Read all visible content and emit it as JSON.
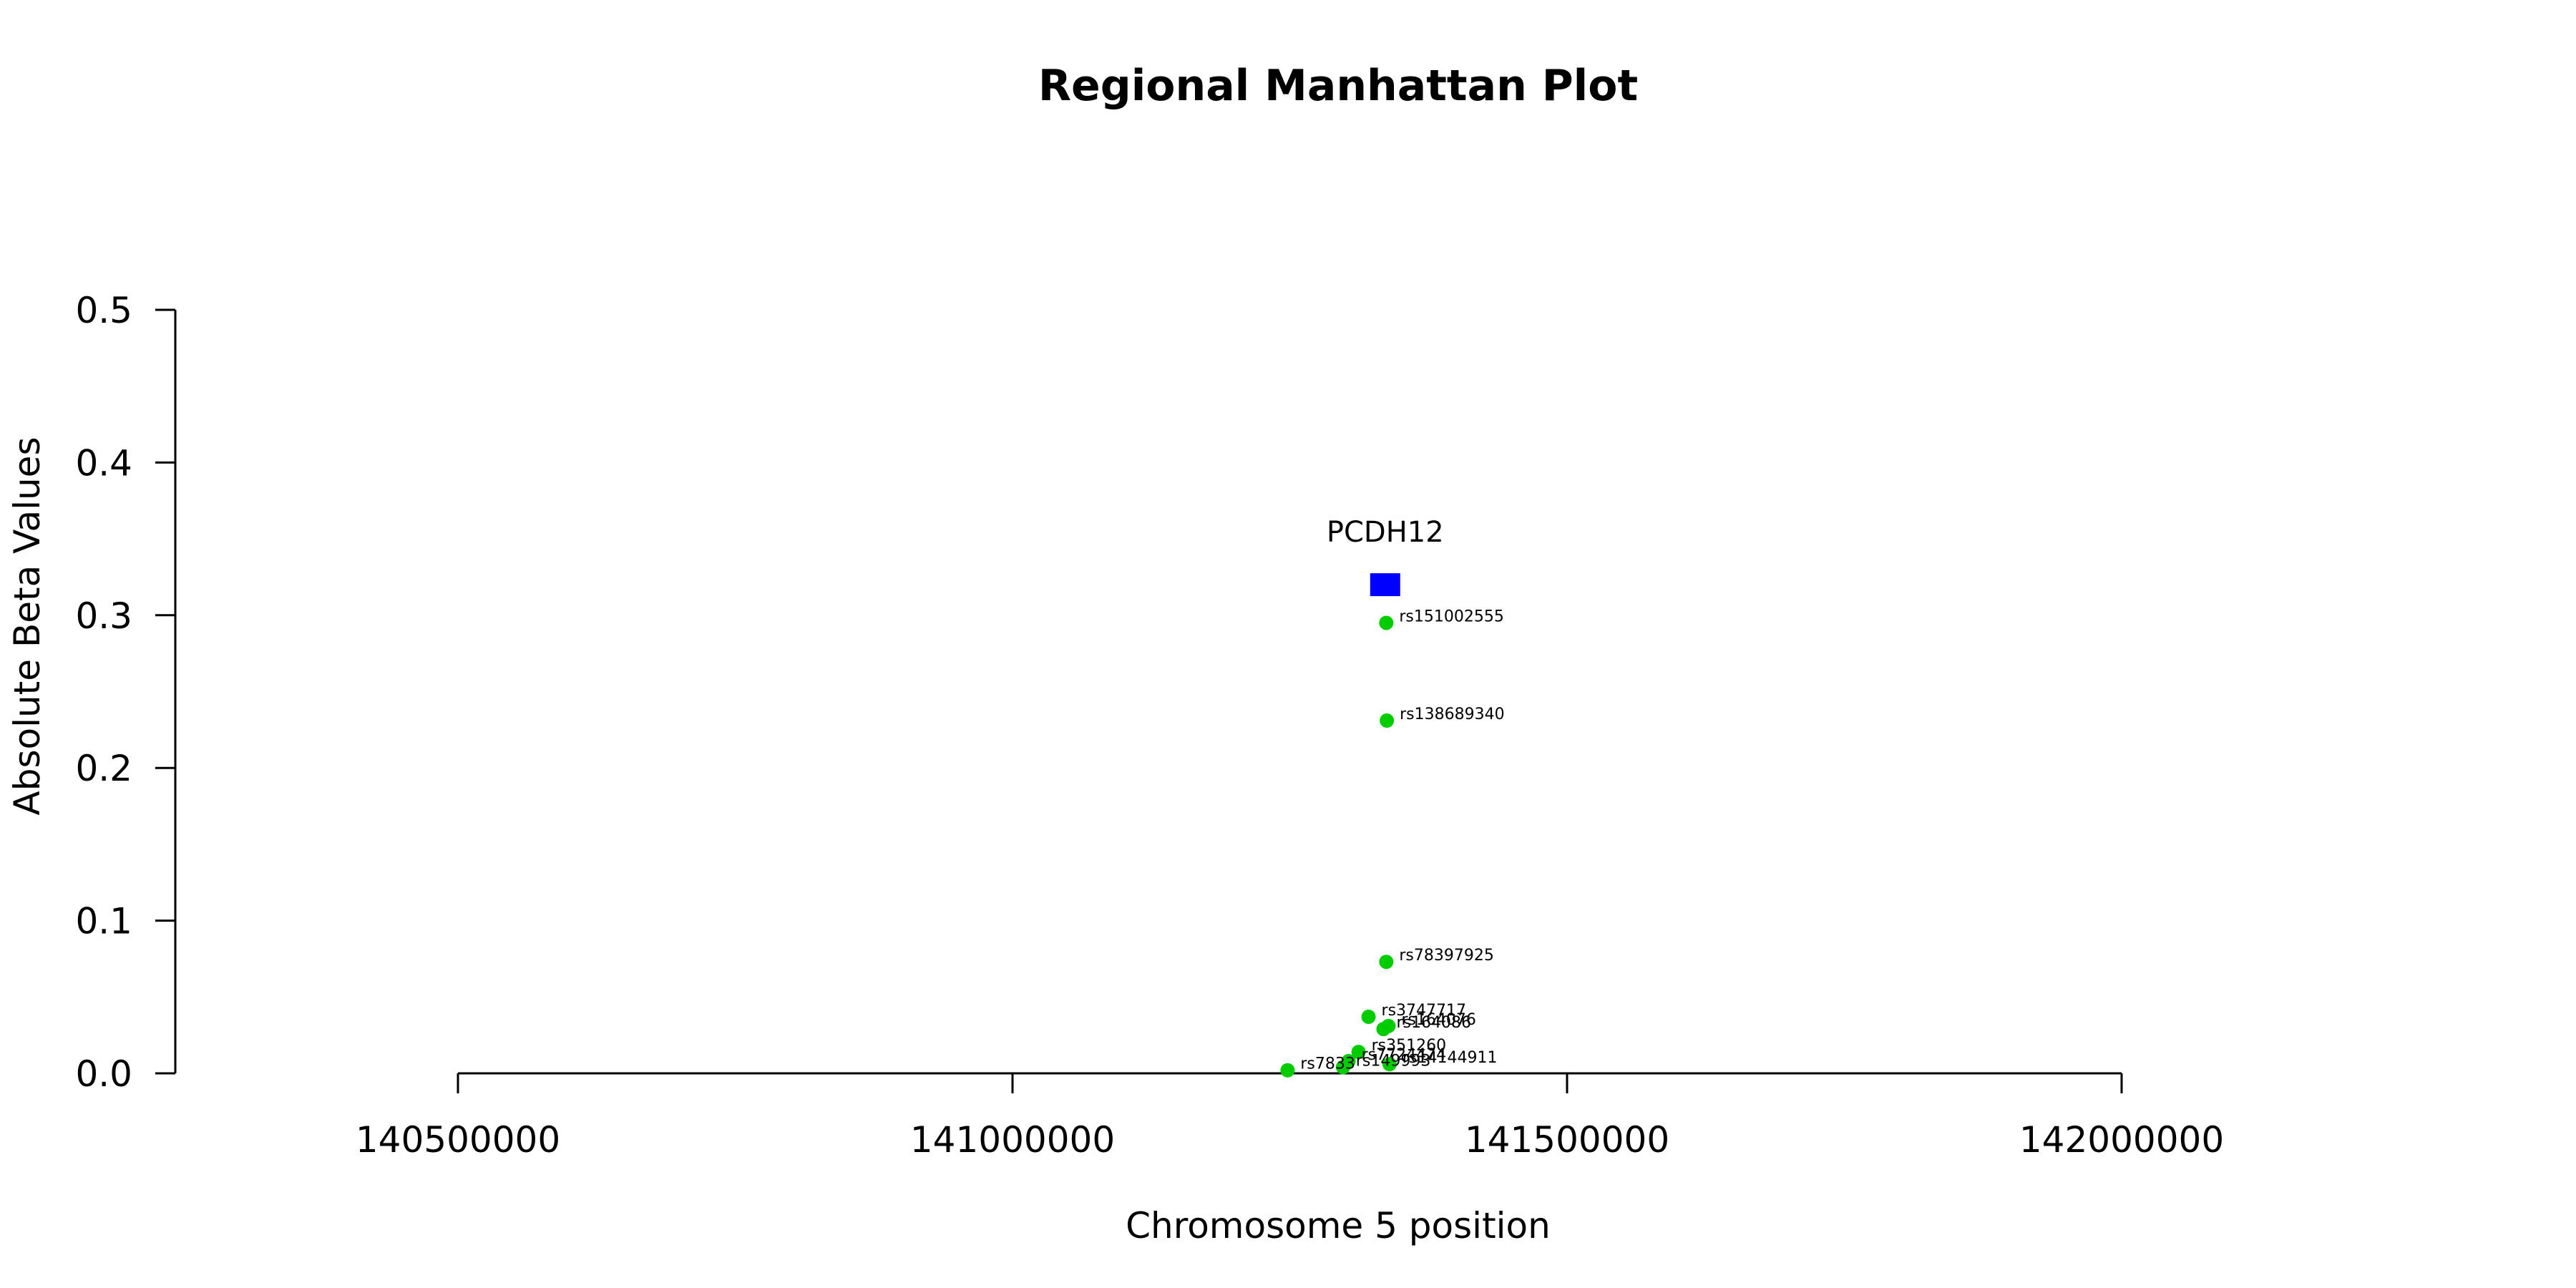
{
  "chart_data": {
    "type": "scatter",
    "title": "Regional Manhattan Plot",
    "xlabel": "Chromosome 5 position",
    "ylabel": "Absolute Beta Values",
    "xlim": [
      140500000,
      142000000
    ],
    "ylim": [
      0,
      0.5
    ],
    "x_ticks": [
      140500000,
      141000000,
      141500000,
      142000000
    ],
    "x_tick_labels": [
      "140500000",
      "141000000",
      "141500000",
      "142000000"
    ],
    "y_ticks": [
      0,
      0.1,
      0.2,
      0.3,
      0.4,
      0.5
    ],
    "y_tick_labels": [
      "0.0",
      "0.1",
      "0.2",
      "0.3",
      "0.4",
      "0.5"
    ],
    "grid": false,
    "gene": {
      "name": "PCDH12",
      "x": 141336000,
      "y": 0.32,
      "color": "#0000ff"
    },
    "series": [
      {
        "color": "#00cc00",
        "points": [
          {
            "label": "rs151002555",
            "x": 141337000,
            "y": 0.295
          },
          {
            "label": "rs138689340",
            "x": 141337500,
            "y": 0.231
          },
          {
            "label": "rs78397925",
            "x": 141337000,
            "y": 0.073
          },
          {
            "label": "rs3747717",
            "x": 141321000,
            "y": 0.037
          },
          {
            "label": "rs164076",
            "x": 141339000,
            "y": 0.031
          },
          {
            "label": "rs164086",
            "x": 141334500,
            "y": 0.029
          },
          {
            "label": "rs351260",
            "x": 141312000,
            "y": 0.014
          },
          {
            "label": "rs7724474",
            "x": 141303000,
            "y": 0.008
          },
          {
            "label": "rs14144911",
            "x": 141340000,
            "y": 0.006
          },
          {
            "label": "rs149993",
            "x": 141298000,
            "y": 0.004
          },
          {
            "label": "rs7833",
            "x": 141248000,
            "y": 0.002
          }
        ]
      }
    ]
  }
}
